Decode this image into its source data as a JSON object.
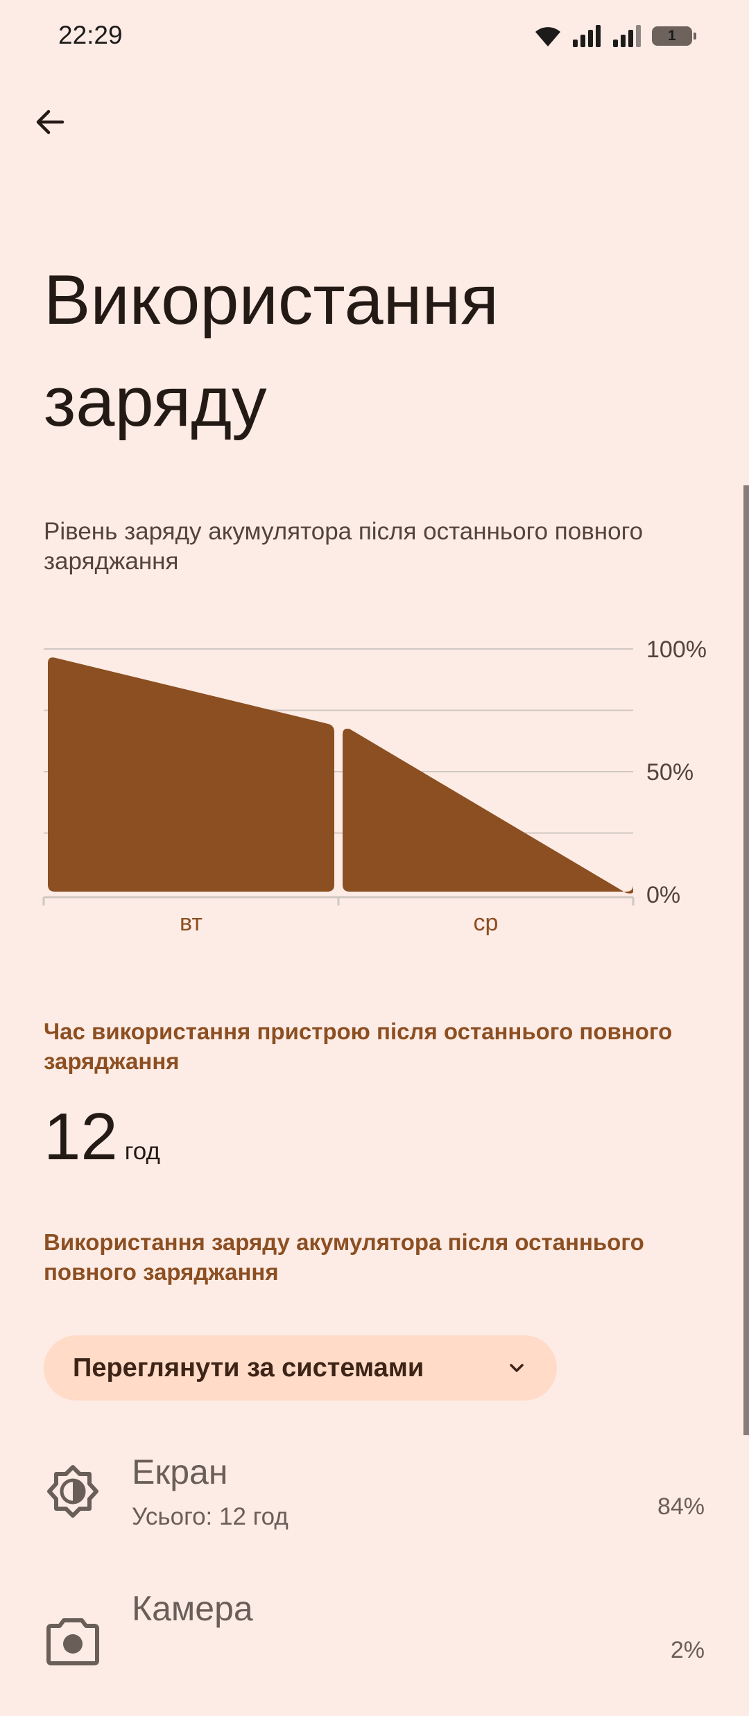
{
  "status_bar": {
    "time": "22:29",
    "battery_level": "1",
    "icons": [
      "wifi-icon",
      "signal-icon",
      "signal-icon",
      "battery-icon"
    ]
  },
  "nav": {
    "back_icon": "arrow-back-icon"
  },
  "page": {
    "title_line1": "Використання",
    "title_line2": "заряду"
  },
  "battery_chart": {
    "caption": "Рівень заряду акумулятора після останнього повного заряджання"
  },
  "chart_data": {
    "type": "area",
    "categories": [
      "вт",
      "ср"
    ],
    "series": [
      {
        "segments": [
          {
            "x": [
              0,
              1
            ],
            "y": [
              97,
              69
            ],
            "day": "вт"
          },
          {
            "x": [
              1,
              2
            ],
            "y": [
              68,
              0
            ],
            "day": "ср"
          }
        ]
      }
    ],
    "y_tick_labels": [
      "100%",
      "50%",
      "0%"
    ],
    "ylim": [
      0,
      100
    ],
    "grid": true,
    "fill_color": "#8b4f22",
    "grid_color": "#d0c7c2"
  },
  "screen_time": {
    "header": "Час використання пристрою після останнього повного заряджання",
    "value": "12",
    "unit": "год"
  },
  "usage_section": {
    "header": "Використання заряду акумулятора після останнього повного заряджання",
    "dropdown_label": "Переглянути за системами",
    "dropdown_icon": "chevron-down-icon"
  },
  "usage_items": [
    {
      "icon": "brightness-icon",
      "title": "Екран",
      "subtitle": "Усього: 12 год",
      "percent": "84%"
    },
    {
      "icon": "camera-icon",
      "title": "Камера",
      "percent": "2%"
    }
  ],
  "colors": {
    "background": "#fdece5",
    "accent": "#8c4f22",
    "dropdown_bg": "#ffdbc8",
    "text_primary": "#241a15",
    "text_secondary": "#6a5e58"
  }
}
